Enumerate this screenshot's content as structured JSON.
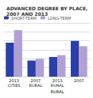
{
  "chart_data": {
    "type": "bar",
    "title": "ADVANCED DEGREE BY PLACE, 2007 AND 2013",
    "categories": [
      "2013\nCITIES",
      "2007\nRURAL",
      "2013\nRURAL",
      "2007\n"
    ],
    "series": [
      {
        "name": "SHORT-TERM",
        "color": "#2b3fa8",
        "values": [
          38,
          18,
          22,
          40
        ]
      },
      {
        "name": "LONG-TERM",
        "color": "#b0a0d4",
        "values": [
          52,
          20,
          24,
          34
        ]
      }
    ],
    "ylim": [
      0,
      60
    ],
    "yticks": [
      0,
      10,
      20,
      30,
      40,
      50,
      60
    ],
    "grid": true,
    "legend": "upper left",
    "tick_labels": "x",
    "annotations": [
      {
        "text": "RURAL",
        "category": 2
      }
    ]
  }
}
